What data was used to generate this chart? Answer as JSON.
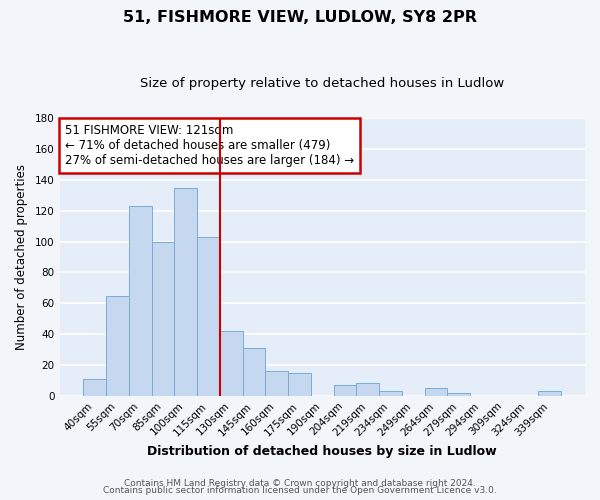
{
  "title": "51, FISHMORE VIEW, LUDLOW, SY8 2PR",
  "subtitle": "Size of property relative to detached houses in Ludlow",
  "xlabel": "Distribution of detached houses by size in Ludlow",
  "ylabel": "Number of detached properties",
  "bar_labels": [
    "40sqm",
    "55sqm",
    "70sqm",
    "85sqm",
    "100sqm",
    "115sqm",
    "130sqm",
    "145sqm",
    "160sqm",
    "175sqm",
    "190sqm",
    "204sqm",
    "219sqm",
    "234sqm",
    "249sqm",
    "264sqm",
    "279sqm",
    "294sqm",
    "309sqm",
    "324sqm",
    "339sqm"
  ],
  "bar_values": [
    11,
    65,
    123,
    100,
    135,
    103,
    42,
    31,
    16,
    15,
    0,
    7,
    8,
    3,
    0,
    5,
    2,
    0,
    0,
    0,
    3
  ],
  "bar_color": "#c5d8f0",
  "bar_edge_color": "#7aadd4",
  "ylim": [
    0,
    180
  ],
  "yticks": [
    0,
    20,
    40,
    60,
    80,
    100,
    120,
    140,
    160,
    180
  ],
  "annotation_text": "51 FISHMORE VIEW: 121sqm\n← 71% of detached houses are smaller (479)\n27% of semi-detached houses are larger (184) →",
  "annotation_box_color": "white",
  "annotation_box_edge_color": "#cc0000",
  "reference_line_color": "#cc0000",
  "footer_line1": "Contains HM Land Registry data © Crown copyright and database right 2024.",
  "footer_line2": "Contains public sector information licensed under the Open Government Licence v3.0.",
  "background_color": "#f2f6fb",
  "plot_background_color": "#e4edf8",
  "grid_color": "white",
  "title_fontsize": 11.5,
  "subtitle_fontsize": 9.5,
  "xlabel_fontsize": 9,
  "ylabel_fontsize": 8.5,
  "tick_fontsize": 7.5,
  "annotation_fontsize": 8.5,
  "footer_fontsize": 6.5
}
